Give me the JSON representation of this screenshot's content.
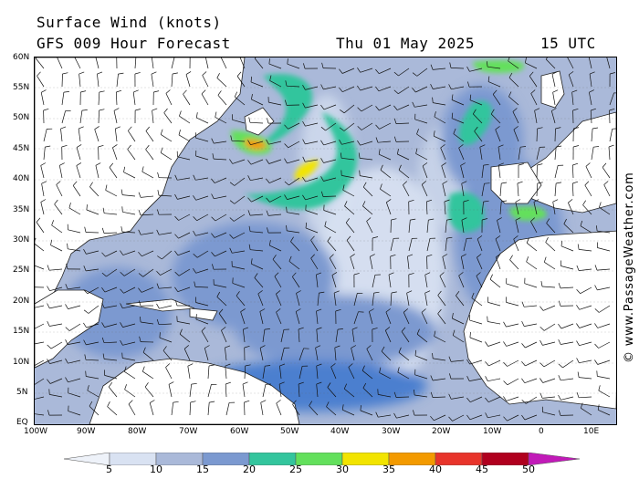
{
  "header": {
    "title": "Surface Wind (knots)",
    "forecast": "GFS 009 Hour Forecast",
    "date": "Thu 01 May 2025",
    "time": "15 UTC"
  },
  "map": {
    "lat_labels": [
      "60N",
      "55N",
      "50N",
      "45N",
      "40N",
      "35N",
      "30N",
      "25N",
      "20N",
      "15N",
      "10N",
      "5N",
      "EQ"
    ],
    "lon_labels": [
      "100W",
      "90W",
      "80W",
      "70W",
      "60W",
      "50W",
      "40W",
      "30W",
      "20W",
      "10W",
      "0",
      "10E"
    ],
    "credit": "© www.PassageWeather.com",
    "land_color": "#ffffff",
    "ocean_base_color": "#aab9d9"
  },
  "legend": {
    "levels": [
      "5",
      "10",
      "15",
      "20",
      "25",
      "30",
      "35",
      "40",
      "45",
      "50"
    ],
    "colors": [
      "#d9e2f2",
      "#aab9d9",
      "#7b99d0",
      "#4b7fcf",
      "#33c59d",
      "#63e05c",
      "#f2e400",
      "#f39a00",
      "#e8342b",
      "#b0001e",
      "#c11ab8"
    ]
  }
}
